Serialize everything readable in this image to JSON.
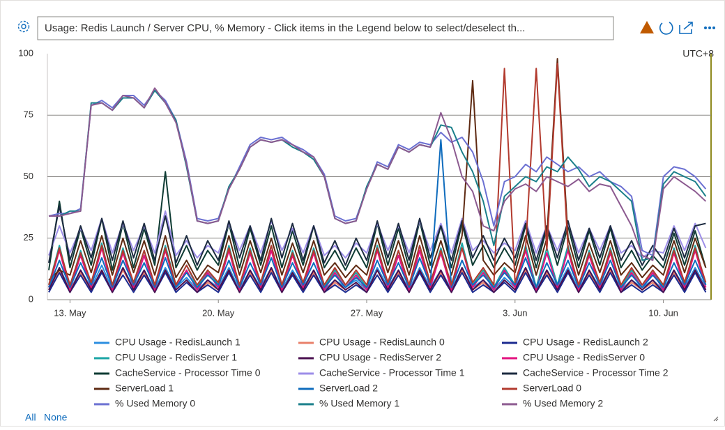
{
  "chart_data": {
    "type": "line",
    "title": "Usage: Redis Launch / Server CPU, % Memory - Click items in the Legend below to select/deselect th...",
    "timezone_label": "UTC+8",
    "legend_actions": [
      "All",
      "None"
    ],
    "categories": [
      null,
      null,
      "13. May",
      null,
      null,
      null,
      null,
      null,
      null,
      null,
      null,
      null,
      null,
      null,
      null,
      null,
      "20. May",
      null,
      null,
      null,
      null,
      null,
      null,
      null,
      null,
      null,
      null,
      null,
      null,
      null,
      "27. May",
      null,
      null,
      null,
      null,
      null,
      null,
      null,
      null,
      null,
      null,
      null,
      null,
      null,
      "3. Jun",
      null,
      null,
      null,
      null,
      null,
      null,
      null,
      null,
      null,
      null,
      null,
      null,
      null,
      "10. Jun",
      null,
      null,
      null,
      null
    ],
    "ylim": [
      0,
      100
    ],
    "yticks": [
      0,
      25,
      50,
      75,
      100
    ],
    "grid": true,
    "series": [
      {
        "name": "CPU Usage - RedisLaunch 1",
        "color": "#2b8ee0",
        "values": [
          5,
          13,
          4,
          12,
          5,
          14,
          4,
          13,
          5,
          12,
          4,
          13,
          5,
          9,
          4,
          8,
          5,
          13,
          4,
          12,
          5,
          13,
          4,
          12,
          5,
          12,
          4,
          8,
          5,
          8,
          4,
          13,
          5,
          12,
          4,
          13,
          5,
          12,
          4,
          13,
          5,
          8,
          4,
          9,
          5,
          13,
          4,
          12,
          5,
          13,
          4,
          12,
          5,
          13,
          4,
          8,
          5,
          8,
          4,
          12,
          5,
          13,
          5
        ]
      },
      {
        "name": "CPU Usage - RedisLaunch 0",
        "color": "#e9806a",
        "values": [
          4,
          12,
          4,
          11,
          4,
          12,
          3,
          12,
          4,
          11,
          3,
          12,
          4,
          8,
          3,
          7,
          4,
          12,
          3,
          11,
          4,
          12,
          3,
          11,
          4,
          11,
          3,
          7,
          4,
          7,
          3,
          12,
          4,
          11,
          3,
          12,
          4,
          11,
          3,
          12,
          4,
          7,
          3,
          8,
          4,
          12,
          3,
          11,
          4,
          12,
          3,
          11,
          4,
          12,
          3,
          7,
          4,
          7,
          3,
          11,
          4,
          12,
          4
        ]
      },
      {
        "name": "CPU Usage - RedisLaunch 2",
        "color": "#1b2a8f",
        "values": [
          3,
          11,
          3,
          10,
          3,
          11,
          3,
          10,
          3,
          10,
          3,
          11,
          3,
          7,
          3,
          6,
          3,
          11,
          3,
          10,
          3,
          11,
          3,
          10,
          3,
          10,
          3,
          6,
          3,
          6,
          3,
          10,
          3,
          10,
          3,
          11,
          3,
          10,
          3,
          11,
          3,
          6,
          3,
          7,
          3,
          11,
          3,
          10,
          3,
          11,
          3,
          10,
          3,
          11,
          3,
          6,
          3,
          6,
          3,
          10,
          3,
          11,
          3
        ]
      },
      {
        "name": "CPU Usage - RedisServer 1",
        "color": "#1aa5a5",
        "values": [
          6,
          22,
          5,
          20,
          6,
          23,
          5,
          21,
          6,
          20,
          5,
          22,
          6,
          14,
          5,
          12,
          6,
          22,
          5,
          21,
          6,
          22,
          5,
          20,
          6,
          21,
          5,
          12,
          6,
          11,
          5,
          22,
          6,
          20,
          5,
          22,
          6,
          21,
          5,
          23,
          6,
          12,
          5,
          13,
          6,
          22,
          5,
          21,
          6,
          22,
          5,
          20,
          6,
          21,
          5,
          12,
          6,
          12,
          5,
          21,
          6,
          22,
          6
        ]
      },
      {
        "name": "CPU Usage - RedisServer 2",
        "color": "#4a0f4f",
        "values": [
          4,
          13,
          3,
          12,
          4,
          12,
          3,
          13,
          4,
          12,
          3,
          12,
          4,
          8,
          3,
          8,
          4,
          12,
          3,
          12,
          4,
          13,
          3,
          11,
          4,
          12,
          3,
          8,
          4,
          7,
          3,
          12,
          4,
          12,
          3,
          12,
          4,
          12,
          3,
          13,
          4,
          8,
          3,
          8,
          4,
          13,
          3,
          12,
          4,
          12,
          3,
          12,
          4,
          13,
          3,
          8,
          4,
          8,
          3,
          12,
          4,
          12,
          4
        ]
      },
      {
        "name": "CPU Usage - RedisServer 0",
        "color": "#e3127f",
        "values": [
          5,
          20,
          4,
          18,
          5,
          21,
          4,
          19,
          5,
          18,
          4,
          20,
          5,
          12,
          4,
          11,
          5,
          20,
          4,
          19,
          5,
          20,
          4,
          18,
          5,
          19,
          4,
          11,
          5,
          10,
          4,
          20,
          5,
          18,
          4,
          20,
          5,
          19,
          4,
          21,
          5,
          11,
          4,
          12,
          5,
          20,
          4,
          19,
          5,
          20,
          4,
          18,
          5,
          19,
          4,
          11,
          5,
          11,
          4,
          19,
          5,
          20,
          5
        ]
      },
      {
        "name": "CacheService - Processor Time 0",
        "color": "#0e3b33",
        "values": [
          12,
          40,
          13,
          29,
          14,
          33,
          12,
          31,
          13,
          29,
          14,
          52,
          13,
          22,
          12,
          20,
          14,
          31,
          13,
          29,
          14,
          30,
          13,
          28,
          14,
          30,
          13,
          20,
          12,
          21,
          13,
          31,
          14,
          29,
          13,
          32,
          14,
          30,
          13,
          31,
          14,
          22,
          13,
          21,
          14,
          30,
          13,
          29,
          14,
          30,
          13,
          28,
          14,
          29,
          13,
          20,
          12,
          18,
          13,
          27,
          14,
          28,
          13
        ]
      },
      {
        "name": "CacheService - Processor Time 1",
        "color": "#9d8ee8",
        "values": [
          18,
          30,
          19,
          29,
          20,
          33,
          19,
          31,
          20,
          30,
          19,
          36,
          18,
          24,
          17,
          22,
          19,
          31,
          20,
          30,
          19,
          32,
          20,
          29,
          19,
          30,
          18,
          22,
          17,
          23,
          19,
          31,
          20,
          30,
          19,
          32,
          20,
          31,
          19,
          33,
          20,
          24,
          19,
          23,
          20,
          32,
          19,
          30,
          20,
          31,
          19,
          29,
          20,
          30,
          19,
          22,
          17,
          20,
          19,
          30,
          20,
          31,
          21
        ]
      },
      {
        "name": "CacheService - Processor Time 2",
        "color": "#1c2b40",
        "values": [
          15,
          38,
          16,
          30,
          17,
          33,
          16,
          32,
          17,
          31,
          16,
          34,
          15,
          26,
          14,
          24,
          16,
          32,
          17,
          30,
          16,
          33,
          17,
          31,
          16,
          30,
          15,
          24,
          14,
          25,
          16,
          32,
          17,
          31,
          16,
          33,
          17,
          30,
          16,
          32,
          17,
          26,
          16,
          25,
          17,
          31,
          16,
          30,
          17,
          32,
          16,
          29,
          17,
          30,
          16,
          24,
          14,
          22,
          16,
          29,
          17,
          30,
          31
        ]
      },
      {
        "name": "ServerLoad 1",
        "color": "#5e2a12",
        "values": [
          8,
          12,
          10,
          24,
          11,
          26,
          10,
          25,
          11,
          24,
          10,
          26,
          9,
          16,
          8,
          14,
          11,
          26,
          10,
          24,
          11,
          25,
          10,
          23,
          11,
          24,
          10,
          15,
          9,
          14,
          10,
          25,
          11,
          24,
          10,
          26,
          11,
          24,
          10,
          26,
          89,
          16,
          10,
          15,
          11,
          26,
          10,
          25,
          98,
          25,
          10,
          23,
          11,
          24,
          10,
          15,
          9,
          14,
          10,
          24,
          11,
          25,
          13
        ]
      },
      {
        "name": "ServerLoad 2",
        "color": "#0f6cbd",
        "values": [
          5,
          16,
          5,
          15,
          6,
          17,
          5,
          16,
          6,
          15,
          5,
          17,
          5,
          11,
          5,
          10,
          6,
          16,
          5,
          15,
          6,
          17,
          5,
          15,
          6,
          15,
          5,
          10,
          5,
          9,
          5,
          16,
          6,
          15,
          5,
          17,
          6,
          65,
          5,
          16,
          6,
          10,
          5,
          11,
          6,
          17,
          5,
          15,
          6,
          16,
          5,
          15,
          6,
          16,
          5,
          10,
          5,
          10,
          5,
          15,
          6,
          16,
          6
        ]
      },
      {
        "name": "ServerLoad 0",
        "color": "#b23a2e",
        "values": [
          6,
          21,
          6,
          19,
          7,
          22,
          6,
          20,
          7,
          20,
          6,
          21,
          6,
          14,
          6,
          12,
          7,
          21,
          6,
          20,
          7,
          22,
          6,
          19,
          7,
          20,
          6,
          13,
          6,
          12,
          6,
          21,
          7,
          20,
          6,
          22,
          7,
          20,
          6,
          21,
          7,
          13,
          6,
          94,
          7,
          21,
          94,
          20,
          96,
          21,
          6,
          19,
          7,
          20,
          6,
          13,
          6,
          12,
          6,
          20,
          7,
          21,
          7
        ]
      },
      {
        "name": "% Used Memory 0",
        "color": "#6b70d2",
        "values": [
          34,
          35,
          35,
          37,
          79,
          81,
          78,
          83,
          83,
          79,
          85,
          81,
          73,
          56,
          33,
          32,
          33,
          45,
          54,
          63,
          66,
          65,
          66,
          63,
          61,
          58,
          51,
          34,
          32,
          33,
          45,
          56,
          54,
          63,
          61,
          64,
          63,
          68,
          64,
          66,
          60,
          48,
          30,
          48,
          50,
          55,
          52,
          58,
          55,
          52,
          54,
          50,
          52,
          48,
          46,
          42,
          20,
          18,
          50,
          54,
          53,
          50,
          45
        ]
      },
      {
        "name": "% Used Memory 1",
        "color": "#1a7f8a",
        "values": [
          34,
          34,
          36,
          36,
          80,
          80,
          77,
          82,
          82,
          78,
          85,
          80,
          73,
          54,
          32,
          31,
          32,
          46,
          53,
          62,
          65,
          64,
          65,
          62,
          60,
          57,
          50,
          33,
          31,
          32,
          46,
          55,
          53,
          62,
          60,
          63,
          62,
          71,
          70,
          60,
          52,
          40,
          22,
          42,
          46,
          50,
          48,
          54,
          52,
          58,
          53,
          46,
          50,
          48,
          44,
          40,
          16,
          17,
          47,
          52,
          50,
          48,
          42
        ]
      },
      {
        "name": "% Used Memory 2",
        "color": "#8c5a90",
        "values": [
          34,
          34,
          35,
          36,
          79,
          80,
          77,
          83,
          82,
          78,
          86,
          80,
          72,
          55,
          32,
          31,
          32,
          45,
          53,
          62,
          65,
          64,
          65,
          63,
          60,
          58,
          50,
          33,
          31,
          32,
          45,
          55,
          53,
          62,
          60,
          63,
          62,
          76,
          65,
          50,
          44,
          30,
          28,
          40,
          45,
          47,
          44,
          50,
          48,
          46,
          49,
          44,
          47,
          46,
          38,
          30,
          18,
          16,
          45,
          50,
          47,
          44,
          40
        ]
      }
    ]
  }
}
